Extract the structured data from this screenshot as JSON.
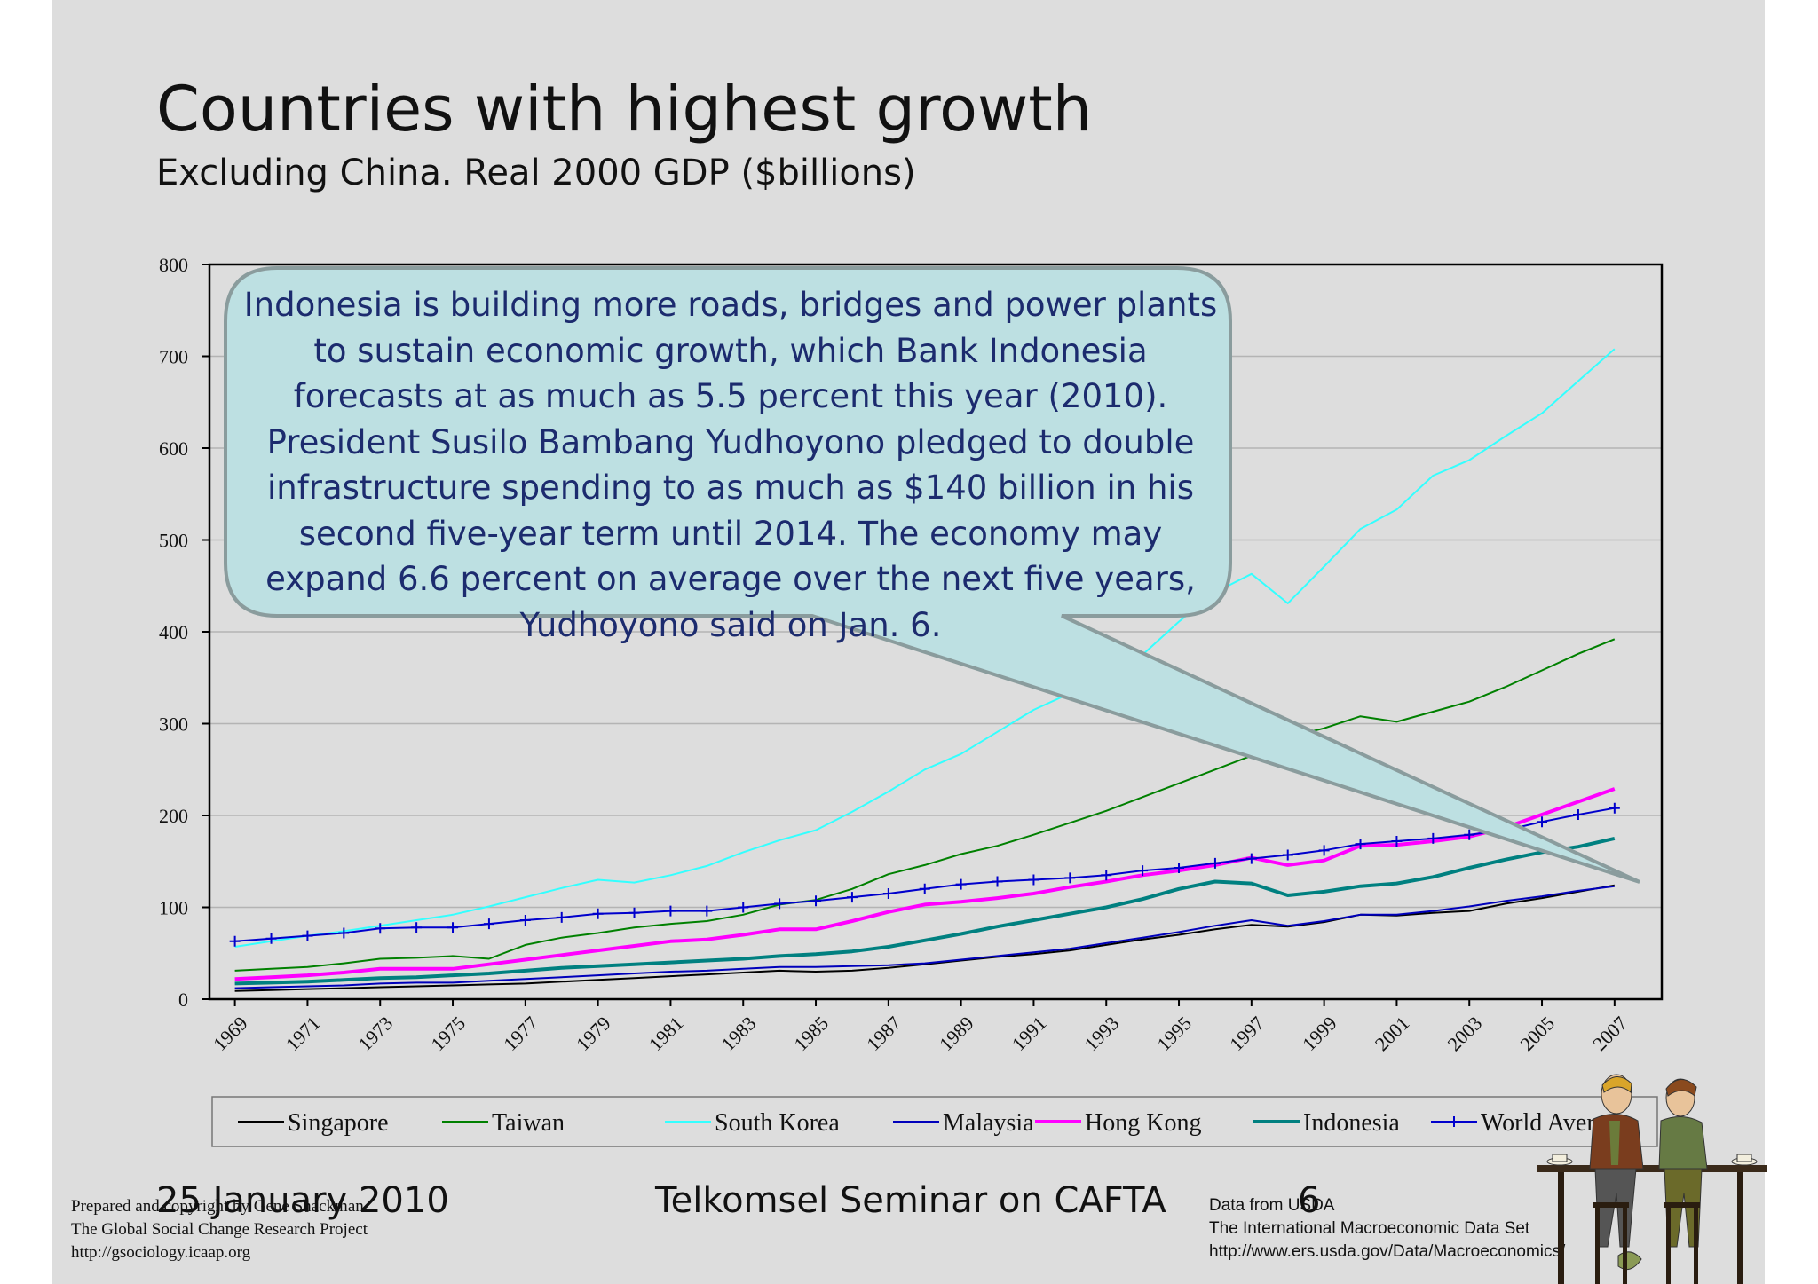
{
  "slide": {
    "title": "Countries with highest growth",
    "subtitle": "Excluding China. Real 2000 GDP ($billions)"
  },
  "callout": {
    "text": "Indonesia is building more roads, bridges and power plants to sustain economic growth, which Bank Indonesia forecasts at as much as 5.5 percent this year (2010).  President Susilo Bambang Yudhoyono pledged to double infrastructure spending to as much as $140 billion in his second five-year term until 2014. The economy may expand 6.6 percent on average over the next five years, Yudhoyono said on Jan. 6.",
    "fill": "#bde0e2",
    "border": "#8a9c9d"
  },
  "footer": {
    "prepared_line1": "Prepared and copyright by Gene Shackman",
    "prepared_line2": "The Global Social Change Research Project",
    "prepared_line3": "http://gsociology.icaap.org",
    "date": "25 January 2010",
    "center": "Telkomsel Seminar on CAFTA",
    "page_number": "6",
    "source_line1": "Data from USDA",
    "source_line2": "The International Macroeconomic Data Set",
    "source_line3": "http://www.ers.usda.gov/Data/Macroeconomics/"
  },
  "chart_data": {
    "type": "line",
    "title": "",
    "xlabel": "",
    "ylabel": "",
    "ylim": [
      0,
      800
    ],
    "yticks": [
      0,
      100,
      200,
      300,
      400,
      500,
      600,
      700,
      800
    ],
    "xtick_labels": [
      "1969",
      "1971",
      "1973",
      "1975",
      "1977",
      "1979",
      "1981",
      "1983",
      "1985",
      "1987",
      "1989",
      "1991",
      "1993",
      "1995",
      "1997",
      "1999",
      "2001",
      "2003",
      "2005",
      "2007"
    ],
    "grid": true,
    "legend_position": "bottom",
    "x": [
      1969,
      1970,
      1971,
      1972,
      1973,
      1974,
      1975,
      1976,
      1977,
      1978,
      1979,
      1980,
      1981,
      1982,
      1983,
      1984,
      1985,
      1986,
      1987,
      1988,
      1989,
      1990,
      1991,
      1992,
      1993,
      1994,
      1995,
      1996,
      1997,
      1998,
      1999,
      2000,
      2001,
      2002,
      2003,
      2004,
      2005,
      2006,
      2007
    ],
    "series": [
      {
        "name": "Singapore",
        "color": "#000000",
        "width": 2,
        "marker": "none",
        "values": [
          9,
          10,
          11,
          12,
          13,
          14,
          15,
          16,
          17,
          19,
          21,
          23,
          25,
          27,
          29,
          31,
          30,
          31,
          34,
          38,
          42,
          46,
          49,
          53,
          59,
          65,
          70,
          76,
          81,
          79,
          84,
          92,
          91,
          94,
          96,
          104,
          110,
          117,
          124
        ]
      },
      {
        "name": "Taiwan",
        "color": "#008000",
        "width": 2,
        "marker": "none",
        "values": [
          31,
          33,
          35,
          39,
          44,
          45,
          47,
          44,
          59,
          67,
          72,
          78,
          82,
          85,
          92,
          103,
          108,
          120,
          136,
          146,
          158,
          167,
          179,
          192,
          205,
          220,
          235,
          250,
          265,
          285,
          295,
          308,
          302,
          313,
          324,
          340,
          358,
          376,
          392
        ]
      },
      {
        "name": "South Korea",
        "color": "#33ffff",
        "width": 2,
        "marker": "none",
        "values": [
          57,
          63,
          69,
          74,
          80,
          86,
          92,
          101,
          111,
          121,
          130,
          127,
          135,
          145,
          160,
          173,
          184,
          204,
          226,
          250,
          267,
          291,
          315,
          333,
          353,
          375,
          411,
          443,
          463,
          431,
          471,
          512,
          533,
          570,
          587,
          613,
          638,
          673,
          708
        ]
      },
      {
        "name": "Malaysia",
        "color": "#0000bb",
        "width": 2,
        "marker": "none",
        "values": [
          12,
          13,
          14,
          15,
          17,
          18,
          18,
          20,
          22,
          24,
          26,
          28,
          30,
          31,
          33,
          35,
          35,
          36,
          37,
          39,
          43,
          47,
          51,
          55,
          61,
          67,
          73,
          80,
          86,
          80,
          85,
          92,
          92,
          96,
          101,
          107,
          112,
          118,
          123
        ]
      },
      {
        "name": "Hong Kong",
        "color": "#ff00ff",
        "width": 4,
        "marker": "none",
        "values": [
          22,
          24,
          26,
          29,
          33,
          33,
          33,
          38,
          43,
          48,
          53,
          58,
          63,
          65,
          70,
          76,
          76,
          85,
          95,
          103,
          106,
          110,
          115,
          122,
          128,
          135,
          140,
          146,
          154,
          146,
          151,
          167,
          168,
          172,
          177,
          187,
          201,
          215,
          229
        ]
      },
      {
        "name": "Indonesia",
        "color": "#008080",
        "width": 4,
        "marker": "none",
        "values": [
          17,
          18,
          19,
          21,
          23,
          24,
          26,
          28,
          31,
          34,
          36,
          38,
          40,
          42,
          44,
          47,
          49,
          52,
          57,
          64,
          71,
          79,
          86,
          93,
          100,
          109,
          120,
          128,
          126,
          113,
          117,
          123,
          126,
          133,
          143,
          152,
          160,
          166,
          175
        ]
      },
      {
        "name": "World Average",
        "color": "#0000cc",
        "width": 2,
        "marker": "plus",
        "values": [
          63,
          66,
          69,
          72,
          77,
          78,
          78,
          82,
          86,
          89,
          93,
          94,
          96,
          96,
          100,
          104,
          107,
          111,
          115,
          120,
          125,
          128,
          130,
          132,
          135,
          140,
          143,
          148,
          153,
          157,
          162,
          169,
          172,
          175,
          179,
          184,
          193,
          201,
          208
        ]
      }
    ]
  }
}
